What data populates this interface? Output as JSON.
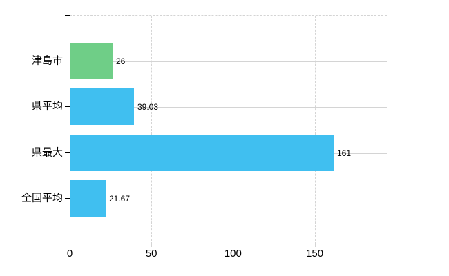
{
  "chart_data": {
    "type": "bar",
    "orientation": "horizontal",
    "title": "",
    "xlabel": "",
    "ylabel": "",
    "categories": [
      "津島市",
      "県平均",
      "県最大",
      "全国平均"
    ],
    "values": [
      26,
      39.03,
      161,
      21.67
    ],
    "value_labels": [
      "26",
      "39.03",
      "161",
      "21.67"
    ],
    "bar_colors": [
      "#6FCE87",
      "#40BFF0",
      "#40BFF0",
      "#40BFF0"
    ],
    "x_ticks": [
      0,
      50,
      100,
      150
    ],
    "x_tick_labels": [
      "0",
      "50",
      "100",
      "150"
    ],
    "xlim": [
      0,
      194.2
    ],
    "grid": "vertical-dashed-and-category-lines",
    "legend": "none",
    "background": "#ffffff"
  },
  "colors": {
    "grid": "#d4d4d4",
    "axis": "#000000",
    "text": "#000000",
    "bar_green": "#6FCE87",
    "bar_blue": "#40BFF0",
    "background": "#ffffff"
  }
}
